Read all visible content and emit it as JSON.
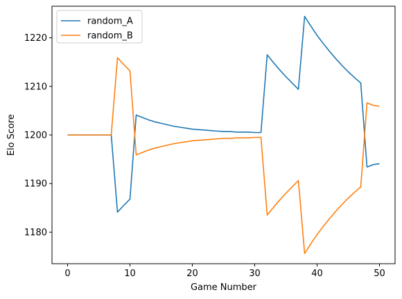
{
  "chart_data": {
    "type": "line",
    "title": "",
    "xlabel": "Game Number",
    "ylabel": "Elo Score",
    "xlim": [
      -2.5,
      52.5
    ],
    "ylim": [
      1173.5,
      1226.5
    ],
    "xticks": [
      0,
      10,
      20,
      30,
      40,
      50
    ],
    "yticks": [
      1180,
      1190,
      1200,
      1210,
      1220
    ],
    "grid": false,
    "legend_position": "upper-left",
    "series": [
      {
        "name": "random_A",
        "color": "#1f77b4",
        "x": [
          0,
          1,
          2,
          3,
          4,
          5,
          6,
          7,
          8,
          9,
          10,
          11,
          12,
          13,
          14,
          15,
          16,
          17,
          18,
          19,
          20,
          21,
          22,
          23,
          24,
          25,
          26,
          27,
          28,
          29,
          30,
          31,
          32,
          33,
          34,
          35,
          36,
          37,
          38,
          39,
          40,
          41,
          42,
          43,
          44,
          45,
          46,
          47,
          48,
          49,
          50
        ],
        "y": [
          1200,
          1200,
          1200,
          1200,
          1200,
          1200,
          1200,
          1200,
          1184.1,
          1185.5,
          1186.8,
          1204.1,
          1203.6,
          1203.1,
          1202.7,
          1202.4,
          1202.1,
          1201.8,
          1201.6,
          1201.4,
          1201.2,
          1201.1,
          1201.0,
          1200.9,
          1200.8,
          1200.7,
          1200.7,
          1200.6,
          1200.6,
          1200.6,
          1200.5,
          1200.5,
          1216.5,
          1214.9,
          1213.4,
          1212.0,
          1210.7,
          1209.4,
          1224.4,
          1222.4,
          1220.5,
          1218.8,
          1217.2,
          1215.7,
          1214.3,
          1213.0,
          1211.8,
          1210.7,
          1193.4,
          1193.9,
          1194.1
        ]
      },
      {
        "name": "random_B",
        "color": "#ff7f0e",
        "x": [
          0,
          1,
          2,
          3,
          4,
          5,
          6,
          7,
          8,
          9,
          10,
          11,
          12,
          13,
          14,
          15,
          16,
          17,
          18,
          19,
          20,
          21,
          22,
          23,
          24,
          25,
          26,
          27,
          28,
          29,
          30,
          31,
          32,
          33,
          34,
          35,
          36,
          37,
          38,
          39,
          40,
          41,
          42,
          43,
          44,
          45,
          46,
          47,
          48,
          49,
          50
        ],
        "y": [
          1200,
          1200,
          1200,
          1200,
          1200,
          1200,
          1200,
          1200,
          1215.9,
          1214.5,
          1213.2,
          1195.9,
          1196.4,
          1196.9,
          1197.3,
          1197.6,
          1197.9,
          1198.2,
          1198.4,
          1198.6,
          1198.8,
          1198.9,
          1199.0,
          1199.1,
          1199.2,
          1199.3,
          1199.3,
          1199.4,
          1199.4,
          1199.4,
          1199.5,
          1199.5,
          1183.5,
          1185.1,
          1186.6,
          1188.0,
          1189.3,
          1190.6,
          1175.6,
          1177.6,
          1179.5,
          1181.2,
          1182.8,
          1184.3,
          1185.7,
          1187.0,
          1188.2,
          1189.3,
          1206.6,
          1206.1,
          1205.9
        ]
      }
    ]
  }
}
